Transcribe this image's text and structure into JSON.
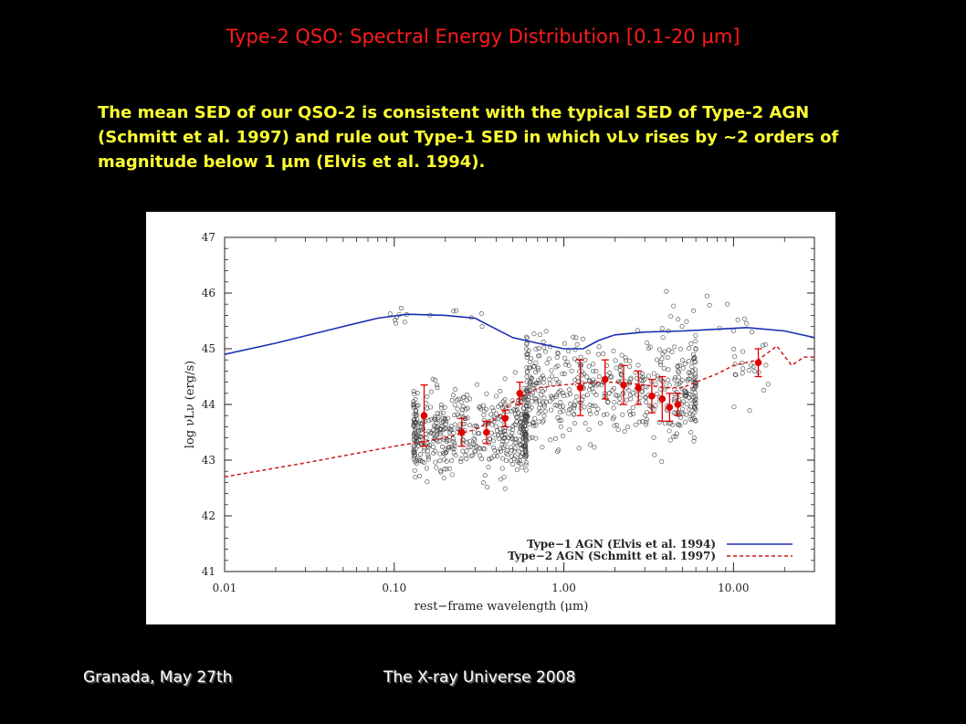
{
  "slide": {
    "title": "Type-2 QSO: Spectral Energy Distribution [0.1-20 µm]",
    "body": "The mean SED of our QSO-2 is consistent with the typical SED of Type-2 AGN (Schmitt et al. 1997) and rule out Type-1 SED in which νLν rises by ~2 orders of magnitude below 1 µm (Elvis et al. 1994).",
    "footer_left": "Granada, May 27th",
    "footer_right": "The X-ray Universe 2008"
  },
  "chart_data": {
    "type": "scatter",
    "xscale": "log",
    "xlim": [
      0.01,
      30
    ],
    "ylim": [
      41,
      47
    ],
    "xlabel": "rest−frame wavelength (μm)",
    "ylabel": "log νLν (erg/s)",
    "xticks": [
      {
        "v": 0.01,
        "label": "0.01"
      },
      {
        "v": 0.1,
        "label": "0.10"
      },
      {
        "v": 1,
        "label": "1.00"
      },
      {
        "v": 10,
        "label": "10.00"
      }
    ],
    "yticks": [
      41,
      42,
      43,
      44,
      45,
      46,
      47
    ],
    "legend_position": "bottom-right",
    "colors": {
      "type1": "#1a2fb3",
      "type2": "#d01818",
      "mean": "#e00000",
      "points": "#444444"
    },
    "series": [
      {
        "name": "Type−1 AGN (Elvis et al. 1994)",
        "style": "solid",
        "x": [
          0.01,
          0.02,
          0.05,
          0.08,
          0.12,
          0.2,
          0.3,
          0.4,
          0.5,
          0.7,
          1.0,
          1.3,
          1.6,
          2.0,
          3,
          5,
          8,
          12,
          20,
          30
        ],
        "y": [
          44.9,
          45.1,
          45.4,
          45.55,
          45.62,
          45.6,
          45.55,
          45.35,
          45.2,
          45.1,
          45.0,
          45.0,
          45.15,
          45.25,
          45.3,
          45.32,
          45.35,
          45.38,
          45.32,
          45.2
        ]
      },
      {
        "name": "Type−2 AGN (Schmitt et al. 1997)",
        "style": "dashed",
        "x": [
          0.01,
          0.03,
          0.1,
          0.2,
          0.3,
          0.4,
          0.5,
          0.7,
          1.0,
          1.5,
          2,
          3,
          4,
          5,
          6,
          8,
          10,
          14,
          18,
          22,
          26,
          30
        ],
        "y": [
          42.7,
          42.95,
          43.25,
          43.4,
          43.55,
          43.75,
          44.05,
          44.3,
          44.35,
          44.4,
          44.4,
          44.35,
          44.3,
          44.3,
          44.4,
          44.55,
          44.7,
          44.8,
          45.05,
          44.7,
          44.85,
          44.85
        ]
      }
    ],
    "mean_sed": {
      "x": [
        0.15,
        0.25,
        0.35,
        0.45,
        0.55,
        1.25,
        1.75,
        2.25,
        2.75,
        3.3,
        3.8,
        4.2,
        4.7,
        14
      ],
      "y": [
        43.8,
        43.5,
        43.5,
        43.75,
        44.2,
        44.3,
        44.45,
        44.35,
        44.3,
        44.15,
        44.1,
        43.95,
        44.0,
        44.75
      ],
      "err": [
        0.55,
        0.25,
        0.2,
        0.15,
        0.2,
        0.5,
        0.35,
        0.35,
        0.3,
        0.3,
        0.4,
        0.25,
        0.2,
        0.25
      ]
    },
    "scatter_clusters": [
      {
        "xmin": 0.13,
        "xmax": 0.6,
        "ymean": 43.5,
        "ysd": 0.38,
        "n": 520
      },
      {
        "xmin": 0.6,
        "xmax": 6,
        "ymean": 44.25,
        "ysd": 0.42,
        "n": 520
      },
      {
        "xmin": 10,
        "xmax": 16,
        "ymean": 44.6,
        "ysd": 0.35,
        "n": 22
      },
      {
        "xmin": 0.09,
        "xmax": 0.4,
        "ymean": 45.55,
        "ysd": 0.07,
        "n": 14
      },
      {
        "xmin": 4,
        "xmax": 12,
        "ymean": 45.5,
        "ysd": 0.35,
        "n": 18
      }
    ]
  }
}
